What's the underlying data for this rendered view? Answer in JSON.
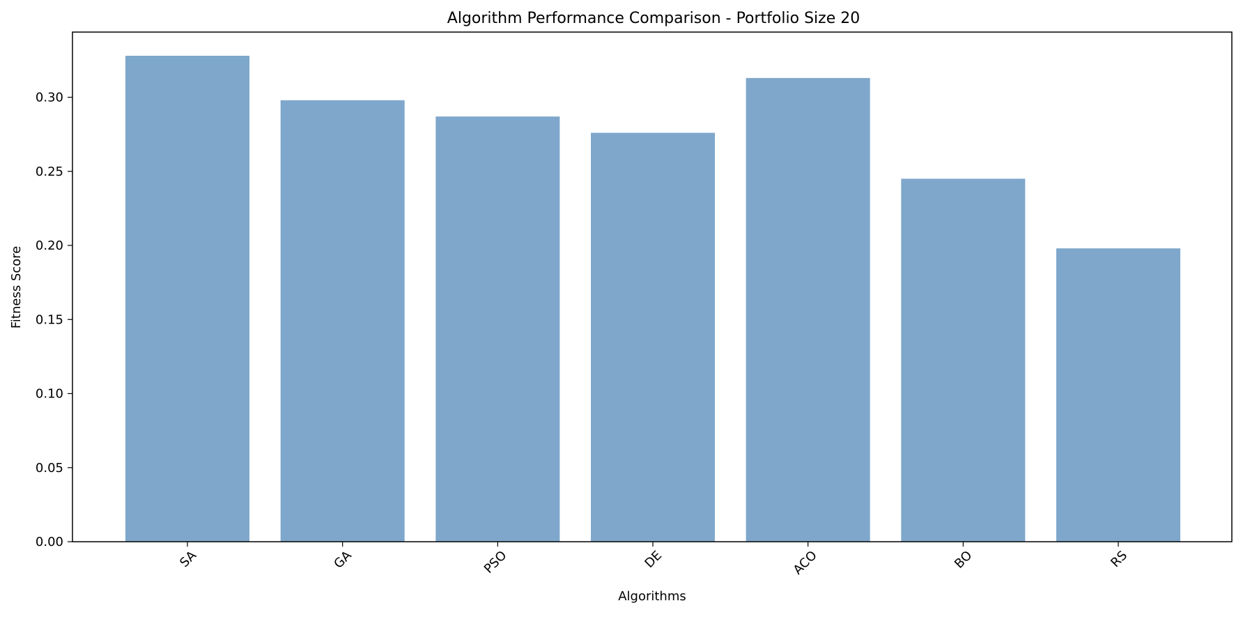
{
  "chart_data": {
    "type": "bar",
    "title": "Algorithm Performance Comparison - Portfolio Size 20",
    "xlabel": "Algorithms",
    "ylabel": "Fitness Score",
    "categories": [
      "SA",
      "GA",
      "PSO",
      "DE",
      "ACO",
      "BO",
      "RS"
    ],
    "values": [
      0.328,
      0.298,
      0.287,
      0.276,
      0.313,
      0.245,
      0.198
    ],
    "ylim": [
      0,
      0.344
    ],
    "yticks": [
      0.0,
      0.05,
      0.1,
      0.15,
      0.2,
      0.25,
      0.3
    ],
    "ytick_labels": [
      "0.00",
      "0.05",
      "0.10",
      "0.15",
      "0.20",
      "0.25",
      "0.30"
    ],
    "bar_color": "#7ea7cb",
    "grid": false,
    "legend": "none"
  }
}
